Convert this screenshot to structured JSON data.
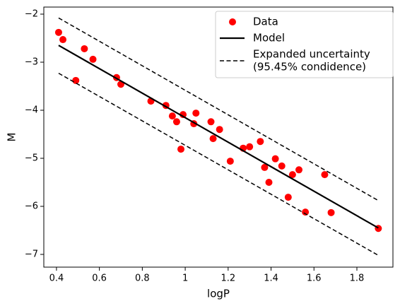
{
  "chart_data": {
    "type": "scatter-line",
    "xlabel": "logP",
    "ylabel": "M",
    "xlim": [
      0.341,
      1.968
    ],
    "ylim": [
      -7.265,
      -1.853
    ],
    "xticks": [
      0.4,
      0.6,
      0.8,
      1.0,
      1.2,
      1.4,
      1.6,
      1.8
    ],
    "yticks": [
      {
        "value": -2,
        "label": "−2"
      },
      {
        "value": -3,
        "label": "−3"
      },
      {
        "value": -4,
        "label": "−4"
      },
      {
        "value": -5,
        "label": "−5"
      },
      {
        "value": -6,
        "label": "−6"
      },
      {
        "value": -7,
        "label": "−7"
      }
    ],
    "legend": "upper right",
    "series": [
      {
        "name": "Data",
        "color": "#ff0000",
        "style": "marker",
        "x": [
          0.41,
          0.43,
          0.53,
          0.57,
          0.49,
          0.68,
          0.7,
          0.84,
          0.91,
          0.94,
          0.96,
          0.99,
          0.98,
          1.05,
          1.04,
          1.12,
          1.16,
          1.13,
          1.21,
          1.27,
          1.3,
          1.35,
          1.37,
          1.39,
          1.42,
          1.45,
          1.5,
          1.53,
          1.48,
          1.56,
          1.65,
          1.68,
          1.9
        ],
        "values": [
          -2.38,
          -2.53,
          -2.72,
          -2.94,
          -3.38,
          -3.32,
          -3.46,
          -3.81,
          -3.9,
          -4.12,
          -4.24,
          -4.09,
          -4.81,
          -4.06,
          -4.28,
          -4.24,
          -4.4,
          -4.59,
          -5.06,
          -4.79,
          -4.76,
          -4.65,
          -5.19,
          -5.5,
          -5.01,
          -5.16,
          -5.34,
          -5.24,
          -5.81,
          -6.12,
          -5.34,
          -6.13,
          -6.46
        ]
      },
      {
        "name": "Model",
        "color": "#000000",
        "style": "solid",
        "x": [
          0.41,
          1.9
        ],
        "values": [
          -2.65,
          -6.45
        ]
      },
      {
        "name": [
          "Expanded uncertainty",
          "(95.45% condidence)"
        ],
        "color": "#000000",
        "style": "dashed",
        "x": [
          0.41,
          1.9,
          null,
          0.41,
          1.9
        ],
        "values": [
          -2.08,
          -5.88,
          null,
          -3.23,
          -7.02
        ]
      }
    ]
  }
}
